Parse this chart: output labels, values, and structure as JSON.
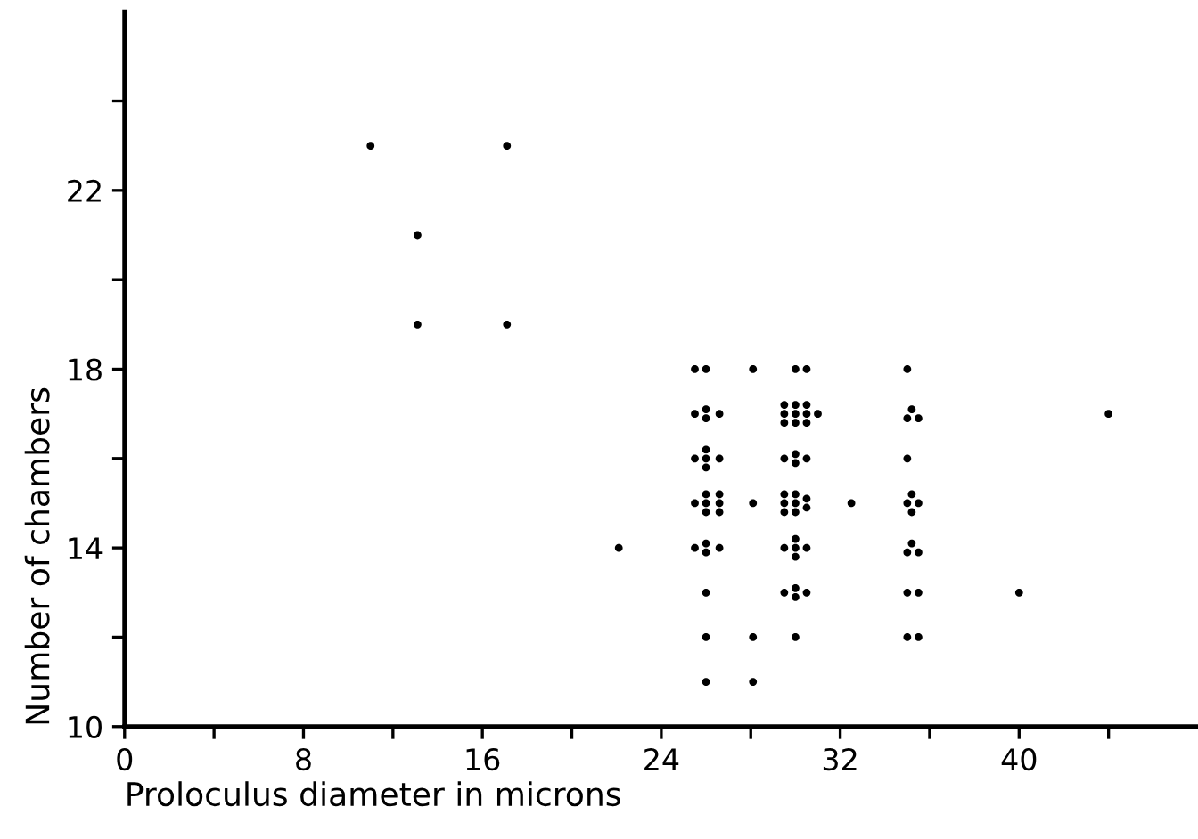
{
  "chart_data": {
    "type": "scatter",
    "xlabel": "Proloculus diameter in microns",
    "ylabel": "Number of chambers",
    "marker": "circle",
    "grid": false,
    "xlim": [
      0,
      48
    ],
    "ylim": [
      10,
      26
    ],
    "xticks": [
      0,
      {
        "value": 4,
        "label": null
      },
      8,
      {
        "value": 12,
        "label": null
      },
      16,
      {
        "value": 20,
        "label": null
      },
      24,
      {
        "value": 28,
        "label": null
      },
      32,
      {
        "value": 36,
        "label": null
      },
      40,
      {
        "value": 44,
        "label": null
      }
    ],
    "yticks": [
      10,
      {
        "value": 12,
        "label": null
      },
      14,
      {
        "value": 16,
        "label": null
      },
      18,
      {
        "value": 20,
        "label": null
      },
      22,
      {
        "value": 24,
        "label": null
      }
    ],
    "series": [
      {
        "color": "#000000",
        "x": [
          11.0,
          13.1,
          13.1,
          17.1,
          17.1,
          22.1,
          25.5,
          26.0,
          25.5,
          26.0,
          26.0,
          26.6,
          25.5,
          26.0,
          26.0,
          26.0,
          26.6,
          25.5,
          26.0,
          26.0,
          26.0,
          26.6,
          26.6,
          26.6,
          25.5,
          26.0,
          26.0,
          26.6,
          26.0,
          26.0,
          26.0,
          28.1,
          28.1,
          28.1,
          28.1,
          30.0,
          30.5,
          29.5,
          29.5,
          29.5,
          30.0,
          30.0,
          30.0,
          30.5,
          30.5,
          30.5,
          31.0,
          29.5,
          30.0,
          30.0,
          30.5,
          29.5,
          29.5,
          29.5,
          30.0,
          30.0,
          30.0,
          30.5,
          30.5,
          29.5,
          30.0,
          30.0,
          30.0,
          30.5,
          29.5,
          30.0,
          30.0,
          30.5,
          30.0,
          32.5,
          35.0,
          35.0,
          35.2,
          35.5,
          35.0,
          35.0,
          35.2,
          35.2,
          35.5,
          35.0,
          35.2,
          35.5,
          35.0,
          35.5,
          35.0,
          35.5,
          40.0,
          44.0
        ],
        "values": [
          23,
          19,
          21,
          23,
          19,
          14,
          18,
          18,
          17,
          17.1,
          16.9,
          17,
          16,
          16.2,
          16,
          15.8,
          16,
          15,
          15.2,
          15,
          14.8,
          15.2,
          15,
          14.8,
          14,
          14.1,
          13.9,
          14,
          13,
          12,
          11,
          18,
          15,
          12,
          11,
          18,
          18,
          17.2,
          17,
          16.8,
          17.2,
          17,
          16.8,
          17.2,
          17,
          16.8,
          17,
          16,
          16.1,
          15.9,
          16,
          15.2,
          15,
          14.8,
          15.2,
          15,
          14.8,
          15.1,
          14.9,
          14,
          14.2,
          14,
          13.8,
          14,
          13,
          13.1,
          12.9,
          13,
          12,
          15,
          18,
          16.9,
          17.1,
          16.9,
          16,
          15,
          15.2,
          14.8,
          15,
          13.9,
          14.1,
          13.9,
          13,
          13,
          12,
          12,
          13,
          17
        ]
      }
    ]
  }
}
